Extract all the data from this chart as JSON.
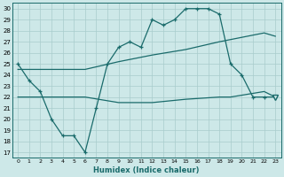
{
  "xlabel": "Humidex (Indice chaleur)",
  "bg_color": "#cde8e8",
  "line_color": "#1a6b6b",
  "grid_color": "#a8cccc",
  "xlim": [
    -0.5,
    23.5
  ],
  "ylim": [
    16.5,
    30.5
  ],
  "yticks": [
    17,
    18,
    19,
    20,
    21,
    22,
    23,
    24,
    25,
    26,
    27,
    28,
    29,
    30
  ],
  "xtick_labels": [
    "0",
    "1",
    "2",
    "3",
    "4",
    "5",
    "6",
    "7",
    "8",
    "9",
    "10",
    "11",
    "12",
    "13",
    "14",
    "15",
    "16",
    "17",
    "18",
    "19",
    "20",
    "21",
    "22",
    "23"
  ],
  "main_line_x": [
    0,
    1,
    2,
    3,
    4,
    5,
    6,
    7,
    8,
    9,
    10,
    11,
    12,
    13,
    14,
    15,
    16,
    17,
    18,
    19,
    20,
    21,
    22,
    23
  ],
  "main_line_y": [
    25.0,
    23.5,
    22.5,
    20.0,
    18.5,
    18.5,
    17.0,
    21.0,
    25.0,
    26.5,
    27.0,
    26.5,
    29.0,
    28.5,
    29.0,
    30.0,
    30.0,
    30.0,
    29.5,
    25.0,
    24.0,
    22.0,
    22.0,
    22.0
  ],
  "upper_band_x": [
    0,
    3,
    6,
    9,
    12,
    15,
    18,
    19,
    22,
    23
  ],
  "upper_band_y": [
    24.5,
    24.5,
    24.5,
    25.2,
    25.8,
    26.3,
    27.0,
    27.2,
    27.8,
    27.5
  ],
  "lower_band_x": [
    0,
    3,
    6,
    9,
    12,
    15,
    18,
    19,
    22,
    23
  ],
  "lower_band_y": [
    22.0,
    22.0,
    22.0,
    21.5,
    21.5,
    21.8,
    22.0,
    22.0,
    22.5,
    22.0
  ],
  "triangle_x": 23,
  "triangle_y": 22.0
}
